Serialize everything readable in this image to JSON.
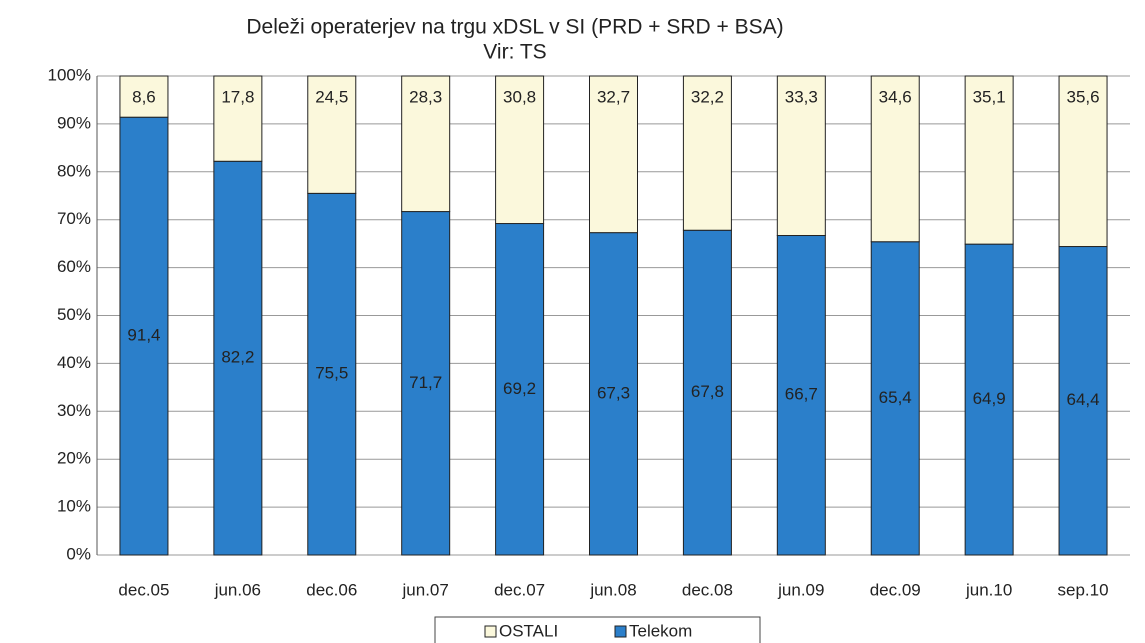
{
  "chart_data": {
    "type": "stacked_bar",
    "title": "Deleži operaterjev na trgu xDSL v SI (PRD + SRD + BSA)",
    "subtitle": "Vir: TS",
    "categories": [
      "dec.05",
      "jun.06",
      "dec.06",
      "jun.07",
      "dec.07",
      "jun.08",
      "dec.08",
      "jun.09",
      "dec.09",
      "jun.10",
      "sep.10"
    ],
    "series": [
      {
        "name": "OSTALI",
        "color": "#fbf8dc",
        "values": [
          8.6,
          17.8,
          24.5,
          28.3,
          30.8,
          32.7,
          32.2,
          33.3,
          34.6,
          35.1,
          35.6
        ],
        "value_labels": [
          "8,6",
          "17,8",
          "24,5",
          "28,3",
          "30,8",
          "32,7",
          "32,2",
          "33,3",
          "34,6",
          "35,1",
          "35,6"
        ]
      },
      {
        "name": "Telekom",
        "color": "#2b7fca",
        "values": [
          91.4,
          82.2,
          75.5,
          71.7,
          69.2,
          67.3,
          67.8,
          66.7,
          65.4,
          64.9,
          64.4
        ],
        "value_labels": [
          "91,4",
          "82,2",
          "75,5",
          "71,7",
          "69,2",
          "67,3",
          "67,8",
          "66,7",
          "65,4",
          "64,9",
          "64,4"
        ]
      }
    ],
    "ylim": [
      0,
      100
    ],
    "yticks": [
      {
        "value": 0,
        "label": "0%"
      },
      {
        "value": 10,
        "label": "10%"
      },
      {
        "value": 20,
        "label": "20%"
      },
      {
        "value": 30,
        "label": "30%"
      },
      {
        "value": 40,
        "label": "40%"
      },
      {
        "value": 50,
        "label": "50%"
      },
      {
        "value": 60,
        "label": "60%"
      },
      {
        "value": 70,
        "label": "70%"
      },
      {
        "value": 80,
        "label": "80%"
      },
      {
        "value": 90,
        "label": "90%"
      },
      {
        "value": 100,
        "label": "100%"
      }
    ],
    "grid": true,
    "legend": "bottom"
  }
}
